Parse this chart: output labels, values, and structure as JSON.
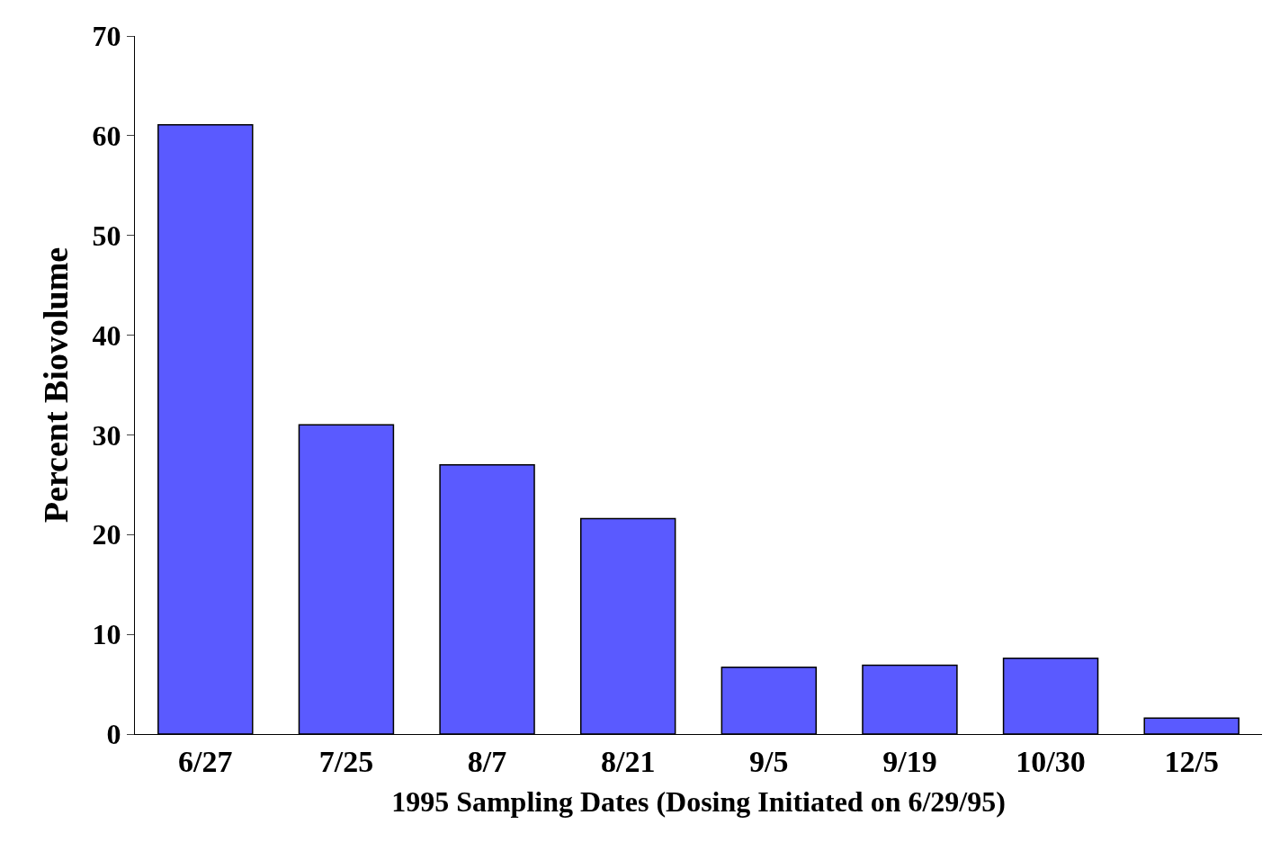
{
  "chart_data": {
    "type": "bar",
    "xlabel": "1995 Sampling Dates (Dosing Initiated on 6/29/95)",
    "ylabel": "Percent Biovolume",
    "categories": [
      "6/27",
      "7/25",
      "8/7",
      "8/21",
      "9/5",
      "9/19",
      "10/30",
      "12/5"
    ],
    "values": [
      61.1,
      31.0,
      27.0,
      21.6,
      6.7,
      6.9,
      7.6,
      1.6
    ],
    "color": "#5a5aff",
    "ylim": [
      0,
      70
    ],
    "yticks": [
      0,
      10,
      20,
      30,
      40,
      50,
      60,
      70
    ]
  }
}
